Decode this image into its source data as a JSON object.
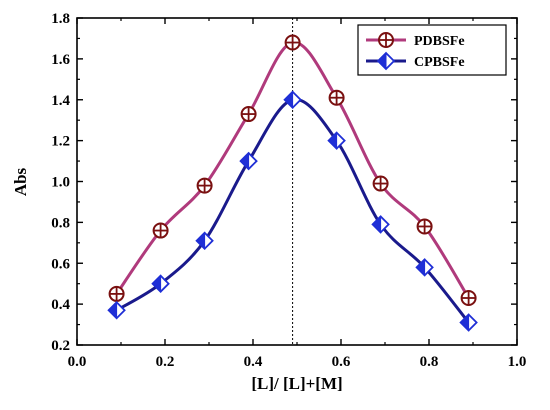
{
  "chart_data": {
    "type": "line",
    "xlabel": "[L]/ [L]+[M]",
    "ylabel": "Abs",
    "xlim": [
      0.0,
      1.0
    ],
    "ylim": [
      0.2,
      1.8
    ],
    "xticks": [
      0.0,
      0.2,
      0.4,
      0.6,
      0.8,
      1.0
    ],
    "yticks": [
      0.2,
      0.4,
      0.6,
      0.8,
      1.0,
      1.2,
      1.4,
      1.6,
      1.8
    ],
    "xtick_labels": [
      "0.0",
      "0.2",
      "0.4",
      "0.6",
      "0.8",
      "1.0"
    ],
    "ytick_labels": [
      "0.2",
      "0.4",
      "0.6",
      "0.8",
      "1.0",
      "1.2",
      "1.4",
      "1.6",
      "1.8"
    ],
    "vline_x": 0.49,
    "legend_position": "top-right",
    "series": [
      {
        "name": "PDBSFe",
        "color": "#b03a7c",
        "marker_color": "#7a1010",
        "marker": "crossed-circle",
        "x": [
          0.09,
          0.19,
          0.29,
          0.39,
          0.49,
          0.59,
          0.69,
          0.79,
          0.89
        ],
        "y": [
          0.45,
          0.76,
          0.98,
          1.33,
          1.68,
          1.41,
          0.99,
          0.78,
          0.43
        ]
      },
      {
        "name": "CPBSFe",
        "color": "#1a1a8c",
        "marker_color": "#1f2fd6",
        "marker": "half-filled-diamond",
        "x": [
          0.09,
          0.19,
          0.29,
          0.39,
          0.49,
          0.59,
          0.69,
          0.79,
          0.89
        ],
        "y": [
          0.37,
          0.5,
          0.71,
          1.1,
          1.4,
          1.2,
          0.79,
          0.58,
          0.31
        ]
      }
    ]
  }
}
